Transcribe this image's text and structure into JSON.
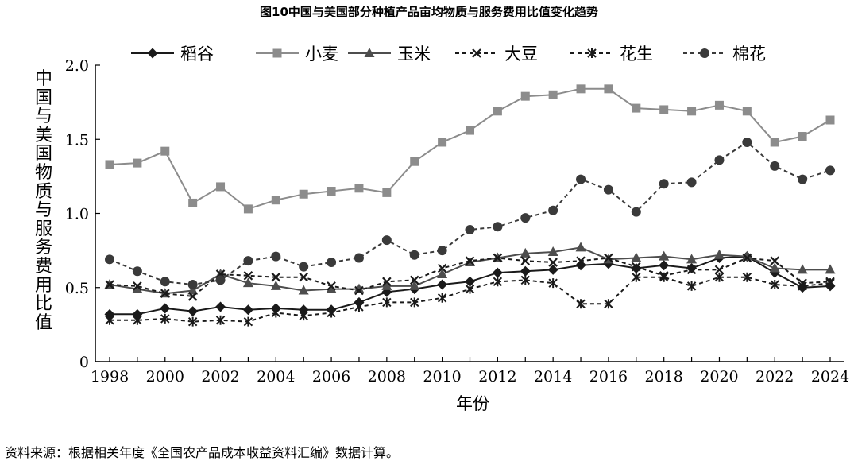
{
  "chart_data": {
    "type": "line",
    "title": "图10中国与美国部分种植产品亩均物质与服务费用比值变化趋势",
    "xlabel": "年份",
    "ylabel": "中国与美国物质与服务费用比值",
    "xlim": [
      1998,
      2024
    ],
    "ylim": [
      0,
      2.0
    ],
    "x_ticks": [
      "1998",
      "2000",
      "2002",
      "2004",
      "2006",
      "2008",
      "2010",
      "2012",
      "2014",
      "2016",
      "2018",
      "2020",
      "2022",
      "2024"
    ],
    "y_ticks": [
      "0",
      "0.5",
      "1.0",
      "1.5",
      "2.0"
    ],
    "grid": false,
    "legend_position": "top",
    "x": [
      1998,
      1999,
      2000,
      2001,
      2002,
      2003,
      2004,
      2005,
      2006,
      2007,
      2008,
      2009,
      2010,
      2011,
      2012,
      2013,
      2014,
      2015,
      2016,
      2017,
      2018,
      2019,
      2020,
      2021,
      2022,
      2023,
      2024
    ],
    "series": [
      {
        "name": "稻谷",
        "marker": "diamond",
        "dash": "solid",
        "color": "#1a1a1a",
        "values": [
          0.32,
          0.32,
          0.36,
          0.34,
          0.37,
          0.35,
          0.36,
          0.35,
          0.35,
          0.4,
          0.47,
          0.49,
          0.52,
          0.54,
          0.6,
          0.61,
          0.62,
          0.65,
          0.66,
          0.63,
          0.65,
          0.63,
          0.7,
          0.71,
          0.6,
          0.5,
          0.51
        ]
      },
      {
        "name": "小麦",
        "marker": "square",
        "dash": "solid",
        "color": "#8c8c8c",
        "values": [
          1.33,
          1.34,
          1.42,
          1.07,
          1.18,
          1.03,
          1.09,
          1.13,
          1.15,
          1.17,
          1.14,
          1.35,
          1.48,
          1.56,
          1.69,
          1.79,
          1.8,
          1.84,
          1.84,
          1.71,
          1.7,
          1.69,
          1.73,
          1.69,
          1.48,
          1.52,
          1.63
        ]
      },
      {
        "name": "玉米",
        "marker": "triangle",
        "dash": "solid",
        "color": "#4d4d4d",
        "values": [
          0.52,
          0.49,
          0.46,
          0.48,
          0.59,
          0.53,
          0.51,
          0.48,
          0.49,
          0.49,
          0.51,
          0.51,
          0.59,
          0.67,
          0.7,
          0.73,
          0.74,
          0.77,
          0.69,
          0.7,
          0.71,
          0.69,
          0.72,
          0.71,
          0.63,
          0.62,
          0.62
        ]
      },
      {
        "name": "大豆",
        "marker": "x",
        "dash": "dashed",
        "color": "#1a1a1a",
        "values": [
          0.52,
          0.51,
          0.46,
          0.44,
          0.59,
          0.58,
          0.57,
          0.57,
          0.51,
          0.48,
          0.54,
          0.55,
          0.63,
          0.68,
          0.7,
          0.68,
          0.67,
          0.68,
          0.7,
          0.64,
          0.58,
          0.62,
          0.62,
          0.7,
          0.68,
          0.53,
          0.54
        ]
      },
      {
        "name": "花生",
        "marker": "star",
        "dash": "dashed",
        "color": "#1a1a1a",
        "values": [
          0.28,
          0.28,
          0.29,
          0.27,
          0.28,
          0.27,
          0.33,
          0.31,
          0.33,
          0.37,
          0.4,
          0.4,
          0.43,
          0.49,
          0.54,
          0.55,
          0.53,
          0.39,
          0.39,
          0.57,
          0.57,
          0.51,
          0.57,
          0.57,
          0.52,
          0.51,
          0.53
        ]
      },
      {
        "name": "棉花",
        "marker": "circle",
        "dash": "dashed",
        "color": "#3a3a3a",
        "values": [
          0.69,
          0.61,
          0.54,
          0.52,
          0.55,
          0.68,
          0.71,
          0.64,
          0.67,
          0.7,
          0.82,
          0.72,
          0.75,
          0.89,
          0.91,
          0.97,
          1.02,
          1.23,
          1.16,
          1.01,
          1.2,
          1.21,
          1.36,
          1.48,
          1.32,
          1.23,
          1.29
        ]
      }
    ]
  },
  "source_note": "资料来源：根据相关年度《全国农产品成本收益资料汇编》数据计算。"
}
